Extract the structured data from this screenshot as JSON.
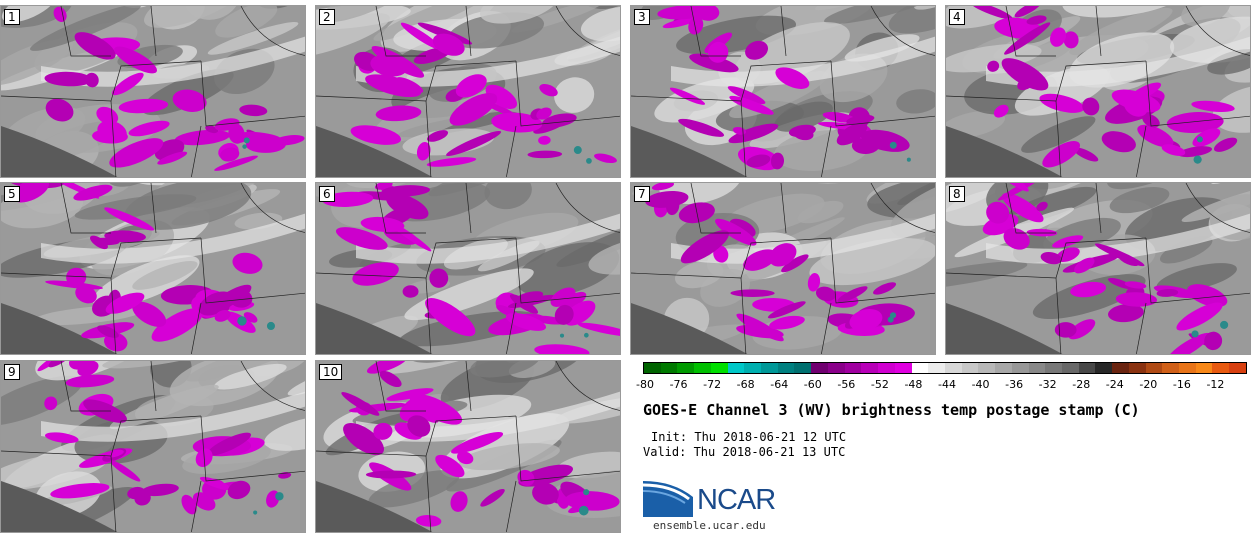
{
  "panels": [
    {
      "label": "1"
    },
    {
      "label": "2"
    },
    {
      "label": "3"
    },
    {
      "label": "4"
    },
    {
      "label": "5"
    },
    {
      "label": "6"
    },
    {
      "label": "7"
    },
    {
      "label": "8"
    },
    {
      "label": "9"
    },
    {
      "label": "10"
    }
  ],
  "colorbar": {
    "ticks": [
      "-80",
      "-76",
      "-72",
      "-68",
      "-64",
      "-60",
      "-56",
      "-52",
      "-48",
      "-44",
      "-40",
      "-36",
      "-32",
      "-28",
      "-24",
      "-20",
      "-16",
      "-12"
    ],
    "colors": [
      "#006400",
      "#007a00",
      "#009a00",
      "#00c000",
      "#00e000",
      "#00c8c8",
      "#00b0b0",
      "#009898",
      "#008080",
      "#007070",
      "#700070",
      "#8a008a",
      "#a000a0",
      "#b800b8",
      "#d000d0",
      "#e000e0",
      "#ffffff",
      "#ececec",
      "#d8d8d8",
      "#c8c8c8",
      "#b8b8b8",
      "#a8a8a8",
      "#989898",
      "#888888",
      "#787878",
      "#686868",
      "#484848",
      "#282828",
      "#6a2410",
      "#8a3210",
      "#b04a14",
      "#d06018",
      "#e87418",
      "#f88818",
      "#e85a10",
      "#d84010"
    ]
  },
  "title": "GOES-E Channel 3 (WV) brightness temp postage stamp (C)",
  "init": "Init: Thu 2018-06-21 12 UTC",
  "valid": "Valid: Thu 2018-06-21 13 UTC",
  "logo": {
    "text": "NCAR",
    "url": "ensemble.ucar.edu"
  }
}
